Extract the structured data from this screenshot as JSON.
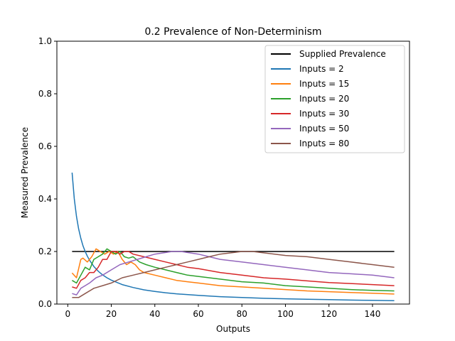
{
  "chart_data": {
    "type": "line",
    "title": "0.2 Prevalence of Non-Determinism",
    "xlabel": "Outputs",
    "ylabel": "Measured Prevalence",
    "xlim": [
      -5,
      157
    ],
    "ylim": [
      0,
      1.0
    ],
    "xticks": [
      0,
      20,
      40,
      60,
      80,
      100,
      120,
      140
    ],
    "yticks": [
      0.0,
      0.2,
      0.4,
      0.6,
      0.8,
      1.0
    ],
    "ytick_labels": [
      "0.0",
      "0.2",
      "0.4",
      "0.6",
      "0.8",
      "1.0"
    ],
    "grid": false,
    "legend_position": "upper right",
    "series": [
      {
        "name": "Supplied Prevalence",
        "color": "#000000",
        "x": [
          2,
          150
        ],
        "y": [
          0.2,
          0.2
        ]
      },
      {
        "name": "Inputs = 2",
        "color": "#1f77b4",
        "x": [
          2,
          3,
          4,
          5,
          6,
          7,
          8,
          9,
          10,
          12,
          14,
          16,
          18,
          20,
          25,
          30,
          35,
          40,
          45,
          50,
          60,
          70,
          80,
          90,
          100,
          110,
          120,
          130,
          140,
          150
        ],
        "y": [
          0.5,
          0.4,
          0.333,
          0.286,
          0.25,
          0.222,
          0.2,
          0.182,
          0.167,
          0.143,
          0.125,
          0.111,
          0.1,
          0.091,
          0.074,
          0.063,
          0.054,
          0.048,
          0.043,
          0.039,
          0.033,
          0.028,
          0.025,
          0.022,
          0.02,
          0.018,
          0.017,
          0.015,
          0.014,
          0.013
        ]
      },
      {
        "name": "Inputs = 15",
        "color": "#ff7f0e",
        "x": [
          2,
          4,
          6,
          7,
          9,
          11,
          13,
          15,
          17,
          19,
          21,
          23,
          25,
          27,
          29,
          31,
          33,
          35,
          40,
          45,
          50,
          55,
          60,
          65,
          70,
          80,
          90,
          100,
          110,
          120,
          130,
          140,
          150
        ],
        "y": [
          0.118,
          0.1,
          0.17,
          0.175,
          0.16,
          0.18,
          0.21,
          0.2,
          0.19,
          0.2,
          0.19,
          0.2,
          0.17,
          0.15,
          0.16,
          0.15,
          0.13,
          0.12,
          0.11,
          0.1,
          0.09,
          0.085,
          0.08,
          0.075,
          0.07,
          0.065,
          0.06,
          0.055,
          0.05,
          0.047,
          0.044,
          0.041,
          0.038
        ]
      },
      {
        "name": "Inputs = 20",
        "color": "#2ca02c",
        "x": [
          2,
          4,
          6,
          8,
          10,
          12,
          14,
          16,
          18,
          20,
          22,
          24,
          26,
          28,
          30,
          33,
          36,
          40,
          45,
          50,
          55,
          60,
          70,
          80,
          90,
          100,
          110,
          120,
          130,
          140,
          150
        ],
        "y": [
          0.09,
          0.08,
          0.11,
          0.14,
          0.13,
          0.17,
          0.18,
          0.19,
          0.21,
          0.2,
          0.19,
          0.2,
          0.18,
          0.175,
          0.18,
          0.16,
          0.15,
          0.14,
          0.13,
          0.12,
          0.11,
          0.105,
          0.095,
          0.085,
          0.08,
          0.07,
          0.065,
          0.06,
          0.055,
          0.052,
          0.05
        ]
      },
      {
        "name": "Inputs = 30",
        "color": "#d62728",
        "x": [
          2,
          4,
          6,
          8,
          10,
          12,
          14,
          16,
          18,
          20,
          22,
          24,
          26,
          28,
          30,
          35,
          40,
          45,
          50,
          55,
          60,
          70,
          80,
          90,
          100,
          110,
          120,
          130,
          140,
          150
        ],
        "y": [
          0.065,
          0.06,
          0.09,
          0.1,
          0.12,
          0.12,
          0.14,
          0.17,
          0.17,
          0.2,
          0.2,
          0.19,
          0.2,
          0.2,
          0.19,
          0.18,
          0.17,
          0.16,
          0.15,
          0.14,
          0.135,
          0.12,
          0.11,
          0.1,
          0.095,
          0.088,
          0.082,
          0.078,
          0.074,
          0.07
        ]
      },
      {
        "name": "Inputs = 50",
        "color": "#9467bd",
        "x": [
          2,
          4,
          6,
          8,
          10,
          13,
          16,
          20,
          24,
          28,
          32,
          36,
          40,
          44,
          48,
          52,
          56,
          60,
          65,
          70,
          80,
          90,
          100,
          110,
          120,
          130,
          140,
          150
        ],
        "y": [
          0.04,
          0.035,
          0.06,
          0.07,
          0.08,
          0.1,
          0.11,
          0.13,
          0.15,
          0.16,
          0.17,
          0.18,
          0.19,
          0.195,
          0.2,
          0.2,
          0.195,
          0.19,
          0.18,
          0.17,
          0.16,
          0.15,
          0.14,
          0.13,
          0.12,
          0.115,
          0.11,
          0.1
        ]
      },
      {
        "name": "Inputs = 80",
        "color": "#8c564b",
        "x": [
          2,
          5,
          8,
          12,
          16,
          20,
          25,
          30,
          35,
          40,
          45,
          50,
          55,
          60,
          65,
          70,
          75,
          80,
          85,
          90,
          95,
          100,
          110,
          120,
          130,
          140,
          150
        ],
        "y": [
          0.025,
          0.025,
          0.04,
          0.06,
          0.07,
          0.08,
          0.1,
          0.11,
          0.12,
          0.13,
          0.14,
          0.15,
          0.16,
          0.17,
          0.18,
          0.19,
          0.195,
          0.2,
          0.2,
          0.195,
          0.19,
          0.185,
          0.18,
          0.17,
          0.16,
          0.15,
          0.14
        ]
      }
    ]
  }
}
